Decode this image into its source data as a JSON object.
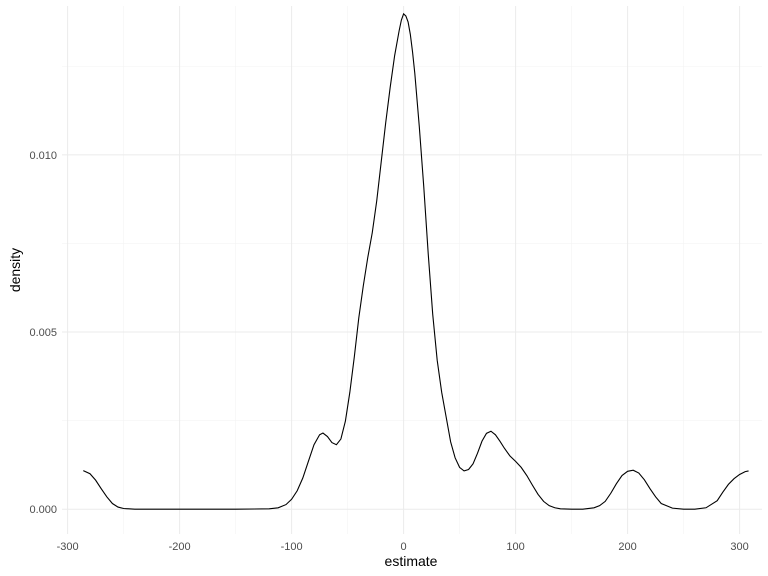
{
  "chart_data": {
    "type": "line",
    "title": "",
    "xlabel": "estimate",
    "ylabel": "density",
    "xlim": [
      -305,
      320
    ],
    "ylim": [
      -0.0007,
      0.0142
    ],
    "x_ticks": [
      -300,
      -200,
      -100,
      0,
      100,
      200,
      300
    ],
    "x_tick_labels": [
      "-300",
      "-200",
      "-100",
      "0",
      "100",
      "200",
      "300"
    ],
    "y_ticks": [
      0.0,
      0.005,
      0.01
    ],
    "y_tick_labels": [
      "0.000",
      "0.005",
      "0.010"
    ],
    "grid": true,
    "legend": "none",
    "line_color": "#000000",
    "series": [
      {
        "x": [
          -286,
          -280,
          -275,
          -270,
          -265,
          -260,
          -255,
          -250,
          -240,
          -200,
          -150,
          -120,
          -112,
          -105,
          -100,
          -95,
          -90,
          -85,
          -80,
          -75,
          -72,
          -68,
          -64,
          -60,
          -56,
          -52,
          -48,
          -44,
          -40,
          -36,
          -32,
          -28,
          -24,
          -20,
          -16,
          -12,
          -8,
          -4,
          -2,
          0,
          2,
          4,
          6,
          8,
          10,
          14,
          18,
          22,
          26,
          30,
          34,
          38,
          42,
          46,
          50,
          54,
          58,
          62,
          66,
          70,
          74,
          78,
          82,
          86,
          90,
          95,
          100,
          105,
          110,
          115,
          120,
          125,
          130,
          135,
          140,
          150,
          160,
          170,
          175,
          180,
          185,
          190,
          195,
          200,
          205,
          210,
          215,
          220,
          225,
          230,
          240,
          250,
          260,
          270,
          280,
          285,
          290,
          295,
          300,
          305,
          308
        ],
        "y": [
          0.00109,
          0.001,
          0.00082,
          0.00058,
          0.00035,
          0.00016,
          6e-05,
          2e-05,
          0.0,
          0.0,
          0.0,
          1e-05,
          4e-05,
          0.00013,
          0.00028,
          0.00052,
          0.00088,
          0.00135,
          0.00182,
          0.0021,
          0.00215,
          0.00205,
          0.00188,
          0.00182,
          0.00198,
          0.00248,
          0.0033,
          0.0043,
          0.0054,
          0.0063,
          0.0071,
          0.0078,
          0.0087,
          0.0098,
          0.0109,
          0.0119,
          0.0128,
          0.0135,
          0.0138,
          0.01398,
          0.01392,
          0.01375,
          0.0134,
          0.0129,
          0.0123,
          0.0108,
          0.0091,
          0.0072,
          0.0055,
          0.0042,
          0.0033,
          0.0026,
          0.0019,
          0.00145,
          0.00118,
          0.00108,
          0.00112,
          0.00128,
          0.00158,
          0.00192,
          0.00214,
          0.0022,
          0.0021,
          0.00192,
          0.00172,
          0.0015,
          0.00135,
          0.00118,
          0.00095,
          0.00068,
          0.00042,
          0.00022,
          0.0001,
          4e-05,
          1e-05,
          0.0,
          0.0,
          4e-05,
          0.0001,
          0.00022,
          0.00045,
          0.00072,
          0.00095,
          0.00107,
          0.0011,
          0.00102,
          0.00083,
          0.00058,
          0.00035,
          0.00016,
          3e-05,
          0.0,
          0.0,
          4e-05,
          0.00024,
          0.00048,
          0.0007,
          0.00086,
          0.00098,
          0.00106,
          0.00108
        ]
      }
    ]
  }
}
